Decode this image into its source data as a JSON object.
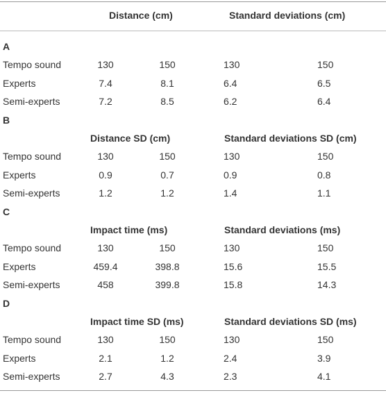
{
  "table": {
    "header": [
      "Distance (cm)",
      "Standard deviations (cm)"
    ],
    "sections": [
      {
        "label": "A",
        "rows": [
          [
            "Tempo sound",
            "130",
            "150",
            "130",
            "150"
          ],
          [
            "Experts",
            "7.4",
            "8.1",
            "6.4",
            "6.5"
          ],
          [
            "Semi-experts",
            "7.2",
            "8.5",
            "6.2",
            "6.4"
          ]
        ]
      },
      {
        "label": "B",
        "header": [
          "Distance SD (cm)",
          "Standard deviations SD (cm)"
        ],
        "rows": [
          [
            "Tempo sound",
            "130",
            "150",
            "130",
            "150"
          ],
          [
            "Experts",
            "0.9",
            "0.7",
            "0.9",
            "0.8"
          ],
          [
            "Semi-experts",
            "1.2",
            "1.2",
            "1.4",
            "1.1"
          ]
        ]
      },
      {
        "label": "C",
        "header": [
          "Impact time (ms)",
          "Standard deviations (ms)"
        ],
        "rows": [
          [
            "Tempo sound",
            "130",
            "150",
            "130",
            "150"
          ],
          [
            "Experts",
            "459.4",
            "398.8",
            "15.6",
            "15.5"
          ],
          [
            "Semi-experts",
            "458",
            "399.8",
            "15.8",
            "14.3"
          ]
        ]
      },
      {
        "label": "D",
        "header": [
          "Impact time SD (ms)",
          "Standard deviations SD (ms)"
        ],
        "rows": [
          [
            "Tempo sound",
            "130",
            "150",
            "130",
            "150"
          ],
          [
            "Experts",
            "2.1",
            "1.2",
            "2.4",
            "3.9"
          ],
          [
            "Semi-experts",
            "2.7",
            "4.3",
            "2.3",
            "4.1"
          ]
        ]
      }
    ]
  }
}
